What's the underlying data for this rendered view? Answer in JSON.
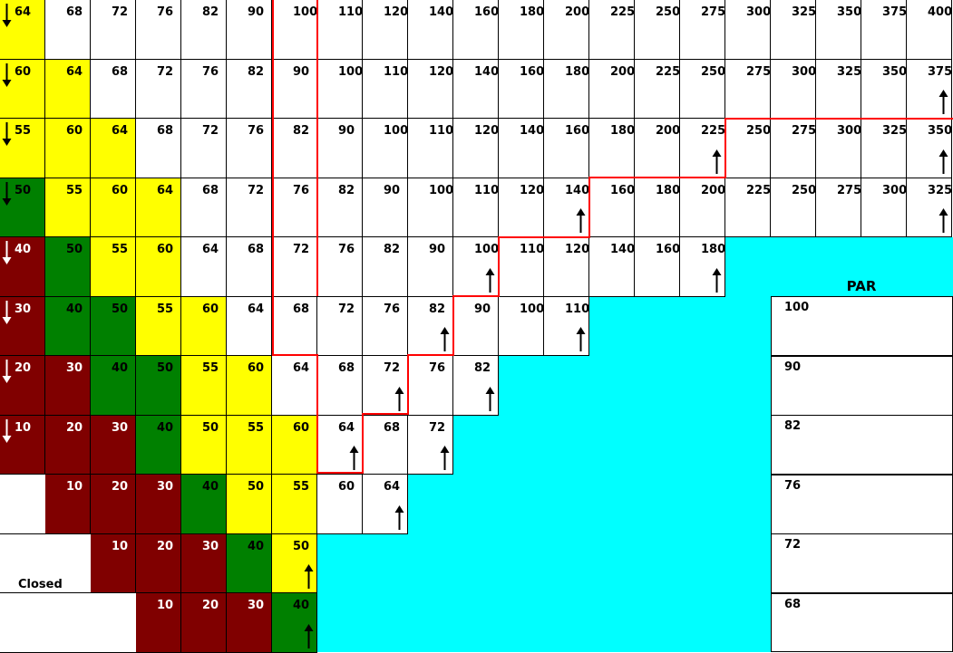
{
  "rows": [
    [
      "64",
      "68",
      "72",
      "76",
      "82",
      "90",
      "100",
      "110",
      "120",
      "140",
      "160",
      "180",
      "200",
      "225",
      "250",
      "275",
      "300",
      "325",
      "350",
      "375",
      "400"
    ],
    [
      "60",
      "64",
      "68",
      "72",
      "76",
      "82",
      "90",
      "100",
      "110",
      "120",
      "140",
      "160",
      "180",
      "200",
      "225",
      "250",
      "275",
      "300",
      "325",
      "350",
      "375"
    ],
    [
      "55",
      "60",
      "64",
      "68",
      "72",
      "76",
      "82",
      "90",
      "100",
      "110",
      "120",
      "140",
      "160",
      "180",
      "200",
      "225",
      "250",
      "275",
      "300",
      "325",
      "350"
    ],
    [
      "50",
      "55",
      "60",
      "64",
      "68",
      "72",
      "76",
      "82",
      "90",
      "100",
      "110",
      "120",
      "140",
      "160",
      "180",
      "200",
      "225",
      "250",
      "275",
      "300",
      "325"
    ],
    [
      "40",
      "50",
      "55",
      "60",
      "64",
      "68",
      "72",
      "76",
      "82",
      "90",
      "100",
      "110",
      "120",
      "140",
      "160",
      "180"
    ],
    [
      "30",
      "40",
      "50",
      "55",
      "60",
      "64",
      "68",
      "72",
      "76",
      "82",
      "90",
      "100",
      "110"
    ],
    [
      "20",
      "30",
      "40",
      "50",
      "55",
      "60",
      "64",
      "68",
      "72",
      "76",
      "82"
    ],
    [
      "10",
      "20",
      "30",
      "40",
      "50",
      "55",
      "60",
      "64",
      "68",
      "72"
    ],
    [
      "",
      "10",
      "20",
      "30",
      "40",
      "50",
      "55",
      "60",
      "64"
    ],
    [
      "",
      "",
      "10",
      "20",
      "30",
      "40",
      "50"
    ],
    [
      "",
      "",
      "",
      "10",
      "20",
      "30",
      "40"
    ]
  ],
  "colors": [
    [
      "y",
      "w",
      "w",
      "w",
      "w",
      "w",
      "w",
      "w",
      "w",
      "w",
      "w",
      "w",
      "w",
      "w",
      "w",
      "w",
      "w",
      "w",
      "w",
      "w",
      "w"
    ],
    [
      "y",
      "y",
      "w",
      "w",
      "w",
      "w",
      "w",
      "w",
      "w",
      "w",
      "w",
      "w",
      "w",
      "w",
      "w",
      "w",
      "w",
      "w",
      "w",
      "w",
      "w"
    ],
    [
      "y",
      "y",
      "y",
      "w",
      "w",
      "w",
      "w",
      "w",
      "w",
      "w",
      "w",
      "w",
      "w",
      "w",
      "w",
      "w",
      "w",
      "w",
      "w",
      "w",
      "w"
    ],
    [
      "g",
      "y",
      "y",
      "y",
      "w",
      "w",
      "w",
      "w",
      "w",
      "w",
      "w",
      "w",
      "w",
      "w",
      "w",
      "w",
      "w",
      "w",
      "w",
      "w",
      "w"
    ],
    [
      "r",
      "g",
      "y",
      "y",
      "w",
      "w",
      "w",
      "w",
      "w",
      "w",
      "w",
      "w",
      "w",
      "w",
      "w",
      "w"
    ],
    [
      "r",
      "g",
      "g",
      "y",
      "y",
      "w",
      "w",
      "w",
      "w",
      "w",
      "w",
      "w",
      "w"
    ],
    [
      "r",
      "r",
      "g",
      "g",
      "y",
      "y",
      "w",
      "w",
      "w",
      "w",
      "w"
    ],
    [
      "r",
      "r",
      "r",
      "g",
      "y",
      "y",
      "y",
      "w",
      "w",
      "w"
    ],
    [
      "cl",
      "r",
      "r",
      "r",
      "g",
      "y",
      "y",
      "w",
      "w"
    ],
    [
      "cl",
      "cl",
      "r",
      "r",
      "r",
      "g",
      "y"
    ],
    [
      "cl",
      "cl",
      "cl",
      "r",
      "r",
      "r",
      "g"
    ]
  ],
  "palette": {
    "white": "#ffffff",
    "yellow": "#ffff00",
    "green": "#008000",
    "maroon": "#800000",
    "cyan": "#00ffff",
    "red_boundary": "#ff0000"
  },
  "down_arrows": [
    [
      0,
      0
    ],
    [
      1,
      0
    ],
    [
      2,
      0
    ],
    [
      3,
      0
    ],
    [
      4,
      0
    ],
    [
      5,
      0
    ],
    [
      6,
      0
    ],
    [
      7,
      0
    ]
  ],
  "up_arrows": [
    [
      1,
      20
    ],
    [
      2,
      15
    ],
    [
      2,
      20
    ],
    [
      3,
      12
    ],
    [
      3,
      20
    ],
    [
      4,
      10
    ],
    [
      4,
      15
    ],
    [
      5,
      9
    ],
    [
      5,
      12
    ],
    [
      6,
      8
    ],
    [
      6,
      10
    ],
    [
      7,
      7
    ],
    [
      7,
      9
    ],
    [
      8,
      8
    ],
    [
      9,
      6
    ],
    [
      10,
      6
    ]
  ],
  "arrow_icons": {
    "down": "arrow-down-icon",
    "up": "arrow-up-icon"
  },
  "par": {
    "title": "PAR",
    "values": [
      "100",
      "90",
      "82",
      "76",
      "72",
      "68"
    ]
  },
  "closed_label": "Closed"
}
